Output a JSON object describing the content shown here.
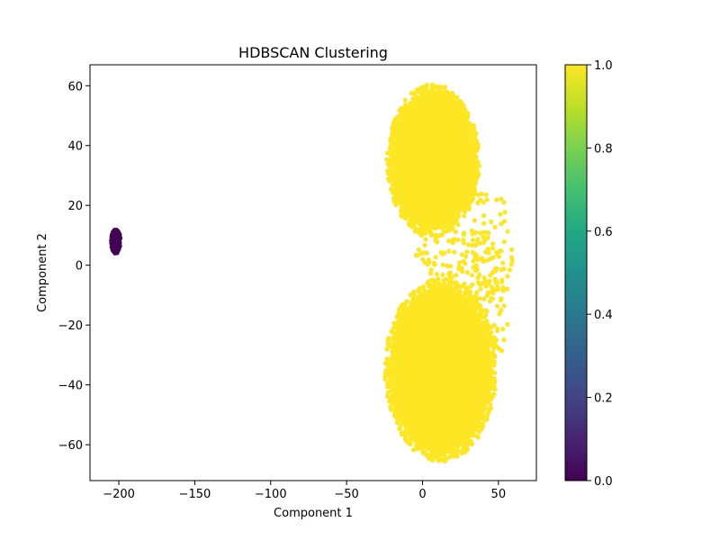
{
  "chart_data": {
    "type": "scatter",
    "title": "HDBSCAN Clustering",
    "xlabel": "Component 1",
    "ylabel": "Component 2",
    "xlim": [
      -219,
      75
    ],
    "ylim": [
      -72,
      67
    ],
    "xticks": [
      -200,
      -150,
      -100,
      -50,
      0,
      50
    ],
    "yticks": [
      -60,
      -40,
      -20,
      0,
      20,
      40,
      60
    ],
    "grid": false,
    "colorbar": {
      "colormap": "viridis",
      "range": [
        0.0,
        1.0
      ],
      "ticks": [
        0.0,
        0.2,
        0.4,
        0.6,
        0.8,
        1.0
      ]
    },
    "clusters": [
      {
        "label_value": 0,
        "color": "#440154",
        "center": [
          -202,
          8
        ],
        "spread": [
          3,
          4
        ],
        "approx_points": 120
      },
      {
        "label_value": 1,
        "color": "#fde725",
        "center": [
          7,
          35
        ],
        "spread": [
          30,
          25
        ],
        "approx_points": "dense upper lobe"
      },
      {
        "label_value": 1,
        "color": "#fde725",
        "center": [
          12,
          -35
        ],
        "spread": [
          36,
          30
        ],
        "approx_points": "dense lower lobe"
      }
    ]
  }
}
